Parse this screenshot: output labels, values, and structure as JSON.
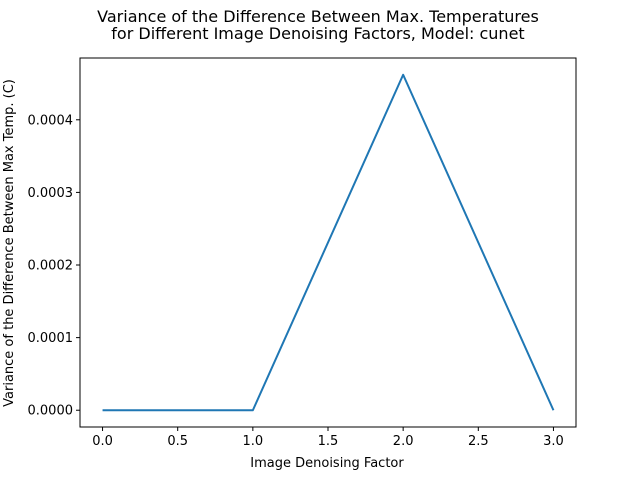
{
  "chart_data": {
    "type": "line",
    "title_lines": [
      "Variance of the Difference Between Max. Temperatures",
      "for Different Image Denoising Factors, Model: cunet"
    ],
    "xlabel": "Image Denoising Factor",
    "ylabel": "Variance of the Difference Between Max Temp. (C)",
    "x": [
      0.0,
      1.0,
      2.0,
      3.0
    ],
    "series": [
      {
        "name": "variance",
        "values": [
          0.0,
          0.0,
          0.000462,
          0.0
        ],
        "color": "#1f77b4"
      }
    ],
    "xlim": [
      -0.15,
      3.15
    ],
    "ylim": [
      -2.31e-05,
      0.0004851
    ],
    "xticks": [
      {
        "value": 0.0,
        "label": "0.0"
      },
      {
        "value": 0.5,
        "label": "0.5"
      },
      {
        "value": 1.0,
        "label": "1.0"
      },
      {
        "value": 1.5,
        "label": "1.5"
      },
      {
        "value": 2.0,
        "label": "2.0"
      },
      {
        "value": 2.5,
        "label": "2.5"
      },
      {
        "value": 3.0,
        "label": "3.0"
      }
    ],
    "yticks": [
      {
        "value": 0.0,
        "label": "0.0000"
      },
      {
        "value": 0.0001,
        "label": "0.0001"
      },
      {
        "value": 0.0002,
        "label": "0.0002"
      },
      {
        "value": 0.0003,
        "label": "0.0003"
      },
      {
        "value": 0.0004,
        "label": "0.0004"
      }
    ],
    "grid": false,
    "legend": "none"
  }
}
